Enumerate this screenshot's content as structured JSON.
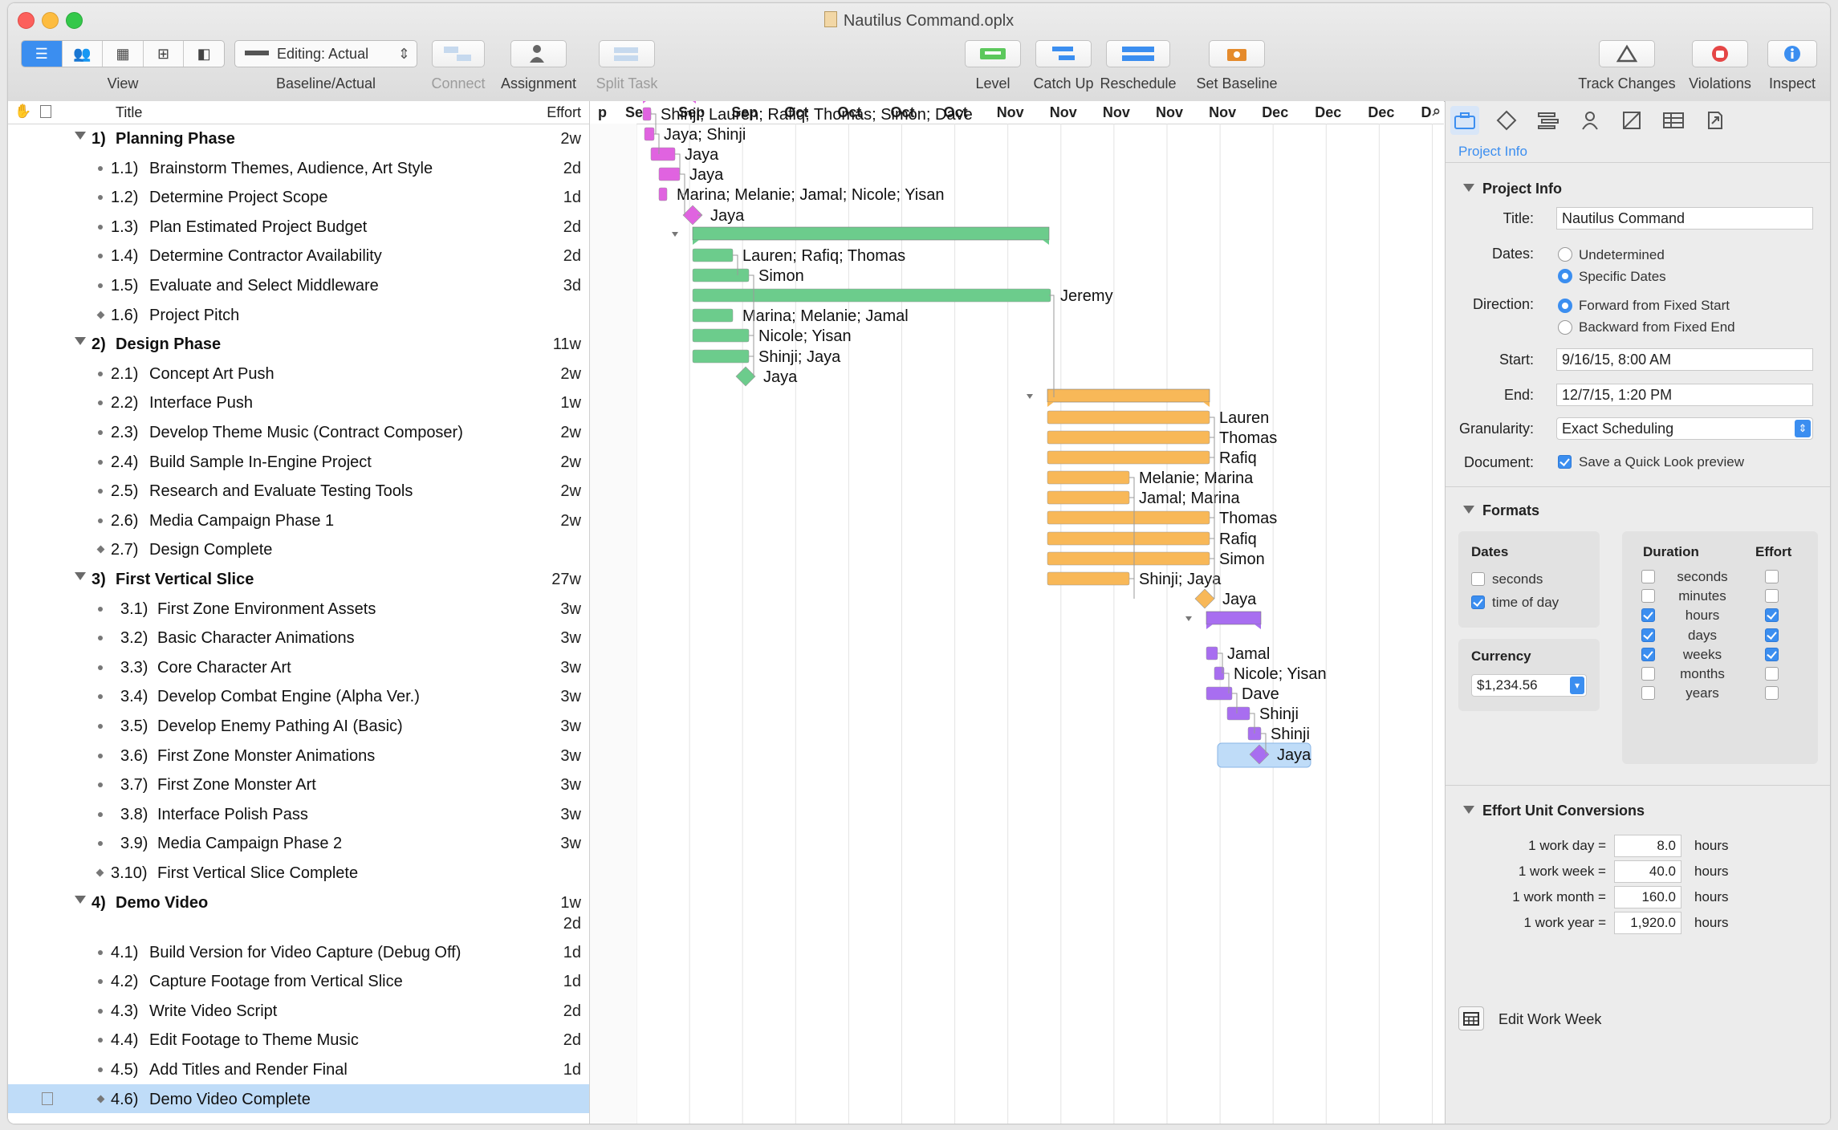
{
  "window": {
    "title": "Nautilus Command.oplx"
  },
  "toolbar": {
    "view_label": "View",
    "baseline_label": "Baseline/Actual",
    "baseline_value": "Editing: Actual",
    "connect_label": "Connect",
    "assignment_label": "Assignment",
    "split_label": "Split Task",
    "level_label": "Level",
    "catchup_label": "Catch Up",
    "reschedule_label": "Reschedule",
    "setbaseline_label": "Set Baseline",
    "track_label": "Track Changes",
    "violations_label": "Violations",
    "inspect_label": "Inspect"
  },
  "outline": {
    "title_header": "Title",
    "effort_header": "Effort",
    "rows": [
      {
        "num": "1)",
        "title": "Planning Phase",
        "effort": "2w",
        "type": "group"
      },
      {
        "num": "1.1)",
        "title": "Brainstorm Themes, Audience, Art Style",
        "effort": "2d",
        "type": "task"
      },
      {
        "num": "1.2)",
        "title": "Determine Project Scope",
        "effort": "1d",
        "type": "task"
      },
      {
        "num": "1.3)",
        "title": "Plan Estimated Project Budget",
        "effort": "2d",
        "type": "task"
      },
      {
        "num": "1.4)",
        "title": "Determine Contractor Availability",
        "effort": "2d",
        "type": "task"
      },
      {
        "num": "1.5)",
        "title": "Evaluate and Select Middleware",
        "effort": "3d",
        "type": "task"
      },
      {
        "num": "1.6)",
        "title": "Project Pitch",
        "effort": "",
        "type": "milestone"
      },
      {
        "num": "2)",
        "title": "Design Phase",
        "effort": "11w",
        "type": "group"
      },
      {
        "num": "2.1)",
        "title": "Concept Art Push",
        "effort": "2w",
        "type": "task"
      },
      {
        "num": "2.2)",
        "title": "Interface Push",
        "effort": "1w",
        "type": "task"
      },
      {
        "num": "2.3)",
        "title": "Develop Theme Music (Contract Composer)",
        "effort": "2w",
        "type": "task"
      },
      {
        "num": "2.4)",
        "title": "Build Sample In-Engine Project",
        "effort": "2w",
        "type": "task"
      },
      {
        "num": "2.5)",
        "title": "Research and Evaluate Testing Tools",
        "effort": "2w",
        "type": "task"
      },
      {
        "num": "2.6)",
        "title": "Media Campaign Phase 1",
        "effort": "2w",
        "type": "task"
      },
      {
        "num": "2.7)",
        "title": "Design Complete",
        "effort": "",
        "type": "milestone"
      },
      {
        "num": "3)",
        "title": "First Vertical Slice",
        "effort": "27w",
        "type": "group"
      },
      {
        "num": "3.1)",
        "title": "First Zone Environment Assets",
        "effort": "3w",
        "type": "task"
      },
      {
        "num": "3.2)",
        "title": "Basic Character Animations",
        "effort": "3w",
        "type": "task"
      },
      {
        "num": "3.3)",
        "title": "Core Character Art",
        "effort": "3w",
        "type": "task"
      },
      {
        "num": "3.4)",
        "title": "Develop Combat Engine (Alpha Ver.)",
        "effort": "3w",
        "type": "task"
      },
      {
        "num": "3.5)",
        "title": "Develop Enemy Pathing AI (Basic)",
        "effort": "3w",
        "type": "task"
      },
      {
        "num": "3.6)",
        "title": "First Zone Monster Animations",
        "effort": "3w",
        "type": "task"
      },
      {
        "num": "3.7)",
        "title": "First Zone Monster Art",
        "effort": "3w",
        "type": "task"
      },
      {
        "num": "3.8)",
        "title": "Interface Polish Pass",
        "effort": "3w",
        "type": "task"
      },
      {
        "num": "3.9)",
        "title": "Media Campaign Phase 2",
        "effort": "3w",
        "type": "task"
      },
      {
        "num": "3.10)",
        "title": "First Vertical Slice Complete",
        "effort": "",
        "type": "milestone"
      },
      {
        "num": "4)",
        "title": "Demo Video",
        "effort": "1w",
        "effort2": "2d",
        "type": "group"
      },
      {
        "num": "4.1)",
        "title": "Build Version for Video Capture (Debug Off)",
        "effort": "1d",
        "type": "task"
      },
      {
        "num": "4.2)",
        "title": "Capture Footage from Vertical Slice",
        "effort": "1d",
        "type": "task"
      },
      {
        "num": "4.3)",
        "title": "Write Video Script",
        "effort": "2d",
        "type": "task"
      },
      {
        "num": "4.4)",
        "title": "Edit Footage to Theme Music",
        "effort": "2d",
        "type": "task"
      },
      {
        "num": "4.5)",
        "title": "Add Titles and Render Final",
        "effort": "1d",
        "type": "task"
      },
      {
        "num": "4.6)",
        "title": "Demo Video Complete",
        "effort": "",
        "type": "milestone",
        "selected": true
      }
    ]
  },
  "gantt": {
    "columns": [
      "p",
      "Sep",
      "Sep",
      "Sep",
      "Oct",
      "Oct",
      "Oct",
      "Oct",
      "Nov",
      "Nov",
      "Nov",
      "Nov",
      "Nov",
      "Dec",
      "Dec",
      "Dec",
      "D"
    ],
    "colors": {
      "planning": "#e063e0",
      "design": "#6ccc8c",
      "slice": "#f8b858",
      "demo": "#a86ef0"
    },
    "resources": [
      "Shinji; Lauren; Rafiq; Thomas; Simon; Dave",
      "Jaya; Shinji",
      "Jaya",
      "Jaya",
      "Marina; Melanie; Jamal; Nicole; Yisan",
      "Jaya",
      "Lauren; Rafiq; Thomas",
      "Simon",
      "Jeremy",
      "Marina; Melanie; Jamal",
      "Nicole; Yisan",
      "Shinji; Jaya",
      "Jaya",
      "Lauren",
      "Thomas",
      "Rafiq",
      "Melanie; Marina",
      "Jamal; Marina",
      "Thomas",
      "Rafiq",
      "Simon",
      "Shinji; Jaya",
      "Jaya",
      "Jamal",
      "Nicole; Yisan",
      "Dave",
      "Shinji",
      "Shinji",
      "Jaya"
    ]
  },
  "inspector": {
    "tab_label": "Project Info",
    "project_info": {
      "header": "Project Info",
      "title_label": "Title:",
      "title_value": "Nautilus Command",
      "dates_label": "Dates:",
      "dates_opt1": "Undetermined",
      "dates_opt2": "Specific Dates",
      "direction_label": "Direction:",
      "dir_opt1": "Forward from Fixed Start",
      "dir_opt2": "Backward from Fixed End",
      "start_label": "Start:",
      "start_value": "9/16/15, 8:00 AM",
      "end_label": "End:",
      "end_value": "12/7/15, 1:20 PM",
      "granularity_label": "Granularity:",
      "granularity_value": "Exact Scheduling",
      "document_label": "Document:",
      "quicklook_label": "Save a Quick Look preview"
    },
    "formats": {
      "header": "Formats",
      "dates_header": "Dates",
      "dates_seconds": "seconds",
      "dates_time": "time of day",
      "currency_header": "Currency",
      "currency_value": "$1,234.56",
      "duration_header": "Duration",
      "effort_header": "Effort",
      "units": [
        "seconds",
        "minutes",
        "hours",
        "days",
        "weeks",
        "months",
        "years"
      ],
      "duration_checked": [
        false,
        false,
        true,
        true,
        true,
        false,
        false
      ],
      "effort_checked": [
        false,
        false,
        true,
        true,
        true,
        false,
        false
      ]
    },
    "conversions": {
      "header": "Effort Unit Conversions",
      "rows": [
        {
          "label": "1 work day =",
          "value": "8.0",
          "unit": "hours"
        },
        {
          "label": "1 work week =",
          "value": "40.0",
          "unit": "hours"
        },
        {
          "label": "1 work month =",
          "value": "160.0",
          "unit": "hours"
        },
        {
          "label": "1 work year =",
          "value": "1,920.0",
          "unit": "hours"
        }
      ],
      "edit_week_label": "Edit Work Week"
    }
  }
}
